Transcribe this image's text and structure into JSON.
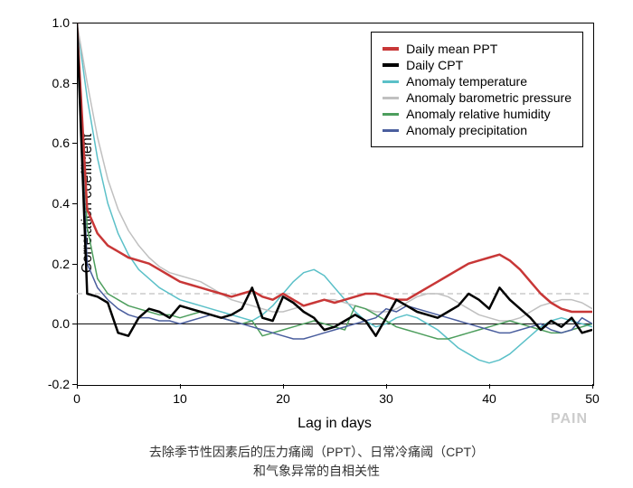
{
  "chart": {
    "type": "line",
    "ylabel": "Correlation coefficient",
    "xlabel": "Lag in days",
    "watermark": "PAIN",
    "caption_line1": "去除季节性因素后的压力痛阈（PPT）、日常冷痛阈（CPT）",
    "caption_line2": "和气象异常的自相关性",
    "xlim": [
      0,
      50
    ],
    "ylim": [
      -0.2,
      1.0
    ],
    "xticks": [
      0,
      10,
      20,
      30,
      40,
      50
    ],
    "yticks": [
      -0.2,
      0.0,
      0.2,
      0.4,
      0.6,
      0.8,
      1.0
    ],
    "background_color": "#ffffff",
    "axis_color": "#000000",
    "ref_line_color": "#cccccc",
    "ref_dash": "6,4",
    "zero_line_color": "#000000",
    "label_fontsize": 16,
    "tick_fontsize": 14,
    "legend_fontsize": 14,
    "caption_fontsize": 14,
    "series": [
      {
        "name": "Daily mean PPT",
        "color": "#c83737",
        "width": 2.5,
        "y": [
          1.0,
          0.38,
          0.3,
          0.26,
          0.24,
          0.22,
          0.21,
          0.2,
          0.18,
          0.16,
          0.14,
          0.13,
          0.12,
          0.11,
          0.1,
          0.09,
          0.1,
          0.11,
          0.09,
          0.08,
          0.1,
          0.08,
          0.06,
          0.07,
          0.08,
          0.07,
          0.08,
          0.09,
          0.1,
          0.1,
          0.09,
          0.08,
          0.08,
          0.1,
          0.12,
          0.14,
          0.16,
          0.18,
          0.2,
          0.21,
          0.22,
          0.23,
          0.21,
          0.18,
          0.14,
          0.1,
          0.07,
          0.05,
          0.04,
          0.04,
          0.04
        ]
      },
      {
        "name": "Daily CPT",
        "color": "#000000",
        "width": 2.5,
        "y": [
          1.0,
          0.1,
          0.09,
          0.07,
          -0.03,
          -0.04,
          0.02,
          0.05,
          0.04,
          0.02,
          0.06,
          0.05,
          0.04,
          0.03,
          0.02,
          0.03,
          0.05,
          0.12,
          0.02,
          0.01,
          0.09,
          0.07,
          0.04,
          0.02,
          -0.02,
          -0.01,
          0.01,
          0.03,
          0.01,
          -0.04,
          0.02,
          0.08,
          0.06,
          0.04,
          0.03,
          0.02,
          0.04,
          0.06,
          0.1,
          0.08,
          0.05,
          0.12,
          0.08,
          0.05,
          0.02,
          -0.02,
          0.01,
          -0.01,
          0.02,
          -0.03,
          -0.02
        ]
      },
      {
        "name": "Anomaly temperature",
        "color": "#5bc0c8",
        "width": 1.5,
        "y": [
          1.0,
          0.75,
          0.55,
          0.4,
          0.3,
          0.23,
          0.18,
          0.15,
          0.12,
          0.1,
          0.08,
          0.07,
          0.06,
          0.05,
          0.04,
          0.03,
          0.02,
          0.01,
          0.03,
          0.06,
          0.1,
          0.14,
          0.17,
          0.18,
          0.16,
          0.12,
          0.08,
          0.04,
          0.01,
          -0.01,
          0.0,
          0.02,
          0.03,
          0.02,
          0.0,
          -0.02,
          -0.05,
          -0.08,
          -0.1,
          -0.12,
          -0.13,
          -0.12,
          -0.1,
          -0.07,
          -0.04,
          -0.01,
          0.01,
          0.02,
          0.01,
          0.0,
          -0.01
        ]
      },
      {
        "name": "Anomaly barometric pressure",
        "color": "#c0c0c0",
        "width": 1.5,
        "y": [
          1.0,
          0.8,
          0.62,
          0.48,
          0.38,
          0.31,
          0.26,
          0.22,
          0.19,
          0.17,
          0.16,
          0.15,
          0.14,
          0.12,
          0.1,
          0.08,
          0.07,
          0.06,
          0.05,
          0.04,
          0.04,
          0.05,
          0.06,
          0.07,
          0.08,
          0.08,
          0.07,
          0.06,
          0.05,
          0.04,
          0.04,
          0.05,
          0.07,
          0.09,
          0.1,
          0.1,
          0.09,
          0.07,
          0.05,
          0.03,
          0.02,
          0.01,
          0.01,
          0.02,
          0.04,
          0.06,
          0.07,
          0.08,
          0.08,
          0.07,
          0.05
        ]
      },
      {
        "name": "Anomaly relative humidity",
        "color": "#4d9e5d",
        "width": 1.5,
        "y": [
          1.0,
          0.32,
          0.15,
          0.1,
          0.08,
          0.06,
          0.05,
          0.04,
          0.03,
          0.03,
          0.02,
          0.03,
          0.04,
          0.03,
          0.02,
          0.01,
          0.0,
          0.01,
          -0.04,
          -0.03,
          -0.02,
          -0.01,
          0.0,
          0.01,
          0.0,
          -0.01,
          -0.02,
          0.06,
          0.05,
          0.03,
          0.01,
          -0.01,
          -0.02,
          -0.03,
          -0.04,
          -0.05,
          -0.05,
          -0.04,
          -0.03,
          -0.02,
          -0.01,
          0.0,
          0.01,
          0.0,
          -0.01,
          -0.02,
          -0.03,
          -0.03,
          -0.02,
          -0.01,
          0.0
        ]
      },
      {
        "name": "Anomaly precipitation",
        "color": "#4a5e9e",
        "width": 1.5,
        "y": [
          1.0,
          0.2,
          0.12,
          0.08,
          0.05,
          0.03,
          0.02,
          0.02,
          0.01,
          0.01,
          0.0,
          0.01,
          0.02,
          0.03,
          0.02,
          0.01,
          0.0,
          -0.01,
          -0.02,
          -0.03,
          -0.04,
          -0.05,
          -0.05,
          -0.04,
          -0.03,
          -0.02,
          -0.01,
          0.0,
          0.01,
          0.02,
          0.05,
          0.04,
          0.06,
          0.05,
          0.04,
          0.03,
          0.02,
          0.01,
          0.0,
          -0.01,
          -0.02,
          -0.03,
          -0.03,
          -0.02,
          -0.01,
          0.0,
          -0.02,
          -0.03,
          -0.02,
          0.02,
          0.0
        ]
      }
    ]
  }
}
